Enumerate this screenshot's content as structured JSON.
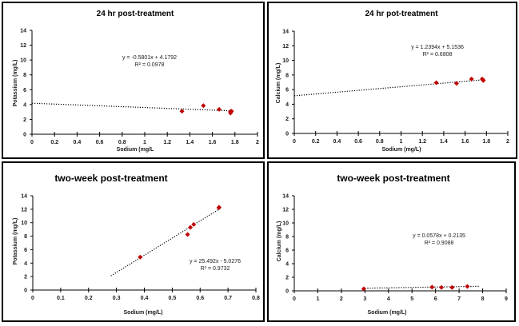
{
  "chart_data": [
    {
      "type": "scatter",
      "title": "24 hr post-treatment",
      "xlabel": "Sodium (mg/L",
      "ylabel": "Potassium (mg/L)",
      "xlim": [
        0,
        2
      ],
      "ylim": [
        0,
        14
      ],
      "xticks": [
        "0",
        "0.2",
        "0.4",
        "0.6",
        "0.8",
        "1",
        "1.2",
        "1.4",
        "1.6",
        "1.8",
        "2"
      ],
      "yticks": [
        "0",
        "2",
        "4",
        "6",
        "8",
        "10",
        "12",
        "14"
      ],
      "grid": false,
      "marker_color": "#c00000",
      "series": [
        {
          "name": "data",
          "x": [
            1.33,
            1.52,
            1.66,
            1.76,
            1.76,
            1.77
          ],
          "y": [
            3.1,
            3.85,
            3.35,
            2.85,
            3.05,
            3.1
          ]
        }
      ],
      "trendline": {
        "type": "linear",
        "slope": -0.5801,
        "intercept": 4.1792,
        "x_range": [
          0,
          1.78
        ]
      },
      "equation": "y = -0.5801x + 4.1792",
      "r2": "R² = 0.0978"
    },
    {
      "type": "scatter",
      "title": "24 hr pot-treatment",
      "xlabel": "Sodium (mg/L)",
      "ylabel": "Calcium (mg/L)",
      "xlim": [
        0,
        2
      ],
      "ylim": [
        0,
        14
      ],
      "xticks": [
        "0",
        "0.2",
        "0.4",
        "0.6",
        "0.8",
        "1",
        "1.2",
        "1.4",
        "1.6",
        "1.8",
        "2"
      ],
      "yticks": [
        "0",
        "2",
        "4",
        "6",
        "8",
        "10",
        "12",
        "14"
      ],
      "grid": false,
      "marker_color": "#c00000",
      "series": [
        {
          "name": "data",
          "x": [
            1.33,
            1.52,
            1.66,
            1.76,
            1.77,
            1.77
          ],
          "y": [
            6.95,
            6.85,
            7.45,
            7.45,
            7.25,
            7.3
          ]
        }
      ],
      "trendline": {
        "type": "linear",
        "slope": 1.2394,
        "intercept": 5.1536,
        "x_range": [
          0,
          1.78
        ]
      },
      "equation": "y = 1.2394x + 5.1536",
      "r2": "R² = 0.6808"
    },
    {
      "type": "scatter",
      "title": "two-week post-treatment",
      "xlabel": "Sodium (mg/L)",
      "ylabel": "Potassium  (mg/L)",
      "xlim": [
        0,
        0.8
      ],
      "ylim": [
        0,
        14
      ],
      "xticks": [
        "0",
        "0.1",
        "0.2",
        "0.3",
        "0.4",
        "0.5",
        "0.6",
        "0.7",
        "0.8"
      ],
      "yticks": [
        "0",
        "2",
        "4",
        "6",
        "8",
        "10",
        "12",
        "14"
      ],
      "grid": false,
      "marker_color": "#c00000",
      "series": [
        {
          "name": "data",
          "x": [
            0.385,
            0.555,
            0.565,
            0.577,
            0.667,
            0.668
          ],
          "y": [
            4.9,
            8.25,
            9.3,
            9.75,
            12.2,
            12.3
          ]
        }
      ],
      "trendline": {
        "type": "linear",
        "slope": 25.492,
        "intercept": -5.0276,
        "x_range": [
          0.28,
          0.67
        ]
      },
      "equation": "y = 25.492x - 5.0276",
      "r2": "R² = 0.9732"
    },
    {
      "type": "scatter",
      "title": "two-week post-treatment",
      "xlabel": "Sodium (mg/L)",
      "ylabel": "Calcium  (mg/L)",
      "xlim": [
        0,
        9
      ],
      "ylim": [
        0,
        14
      ],
      "xticks": [
        "0",
        "1",
        "2",
        "3",
        "4",
        "5",
        "6",
        "7",
        "8",
        "9"
      ],
      "yticks": [
        "0",
        "2",
        "4",
        "6",
        "8",
        "10",
        "12",
        "14"
      ],
      "grid": false,
      "marker_color": "#c00000",
      "series": [
        {
          "name": "data",
          "x": [
            2.95,
            5.85,
            6.25,
            6.7,
            7.35
          ],
          "y": [
            0.3,
            0.55,
            0.5,
            0.5,
            0.65
          ]
        }
      ],
      "trendline": {
        "type": "linear",
        "slope": 0.0578,
        "intercept": 0.2135,
        "x_range": [
          3.0,
          7.85
        ]
      },
      "equation": "y = 0.0578x + 0.2135",
      "r2": "R² = 0.9088"
    }
  ]
}
